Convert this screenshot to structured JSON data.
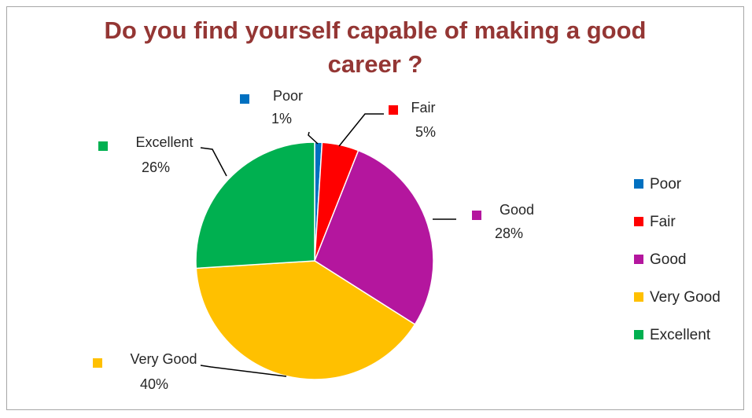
{
  "chart_data": {
    "type": "pie",
    "title": "Do you find yourself capable of making a good career ?",
    "categories": [
      "Poor",
      "Fair",
      "Good",
      "Very Good",
      "Excellent"
    ],
    "values": [
      1,
      5,
      28,
      40,
      26
    ],
    "value_labels": [
      "1%",
      "5%",
      "28%",
      "40%",
      "26%"
    ],
    "colors": [
      "#0070c0",
      "#ff0000",
      "#b4169e",
      "#ffc000",
      "#00b050"
    ],
    "legend": {
      "position": "right"
    }
  }
}
